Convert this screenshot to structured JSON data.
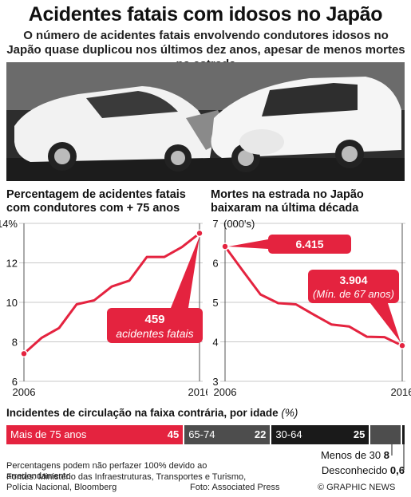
{
  "header": {
    "title": "Acidentes fatais com idosos no Japão",
    "subtitle": "O número de acidentes fatais envolvendo condutores idosos no Japão quase duplicou nos últimos dez anos, apesar de menos mortes na estrada"
  },
  "colors": {
    "accent": "#e4233f",
    "dark": "#1a1a1a",
    "mid": "#4d4d4d",
    "grid": "#c8c8c8",
    "panel": "#ffffff"
  },
  "chart_data": [
    {
      "type": "line",
      "title": "Percentagem de acidentes fatais com condutores com + 75 anos",
      "x": [
        2006,
        2007,
        2008,
        2009,
        2010,
        2011,
        2012,
        2013,
        2014,
        2015,
        2016
      ],
      "y": [
        7.4,
        8.2,
        8.7,
        9.9,
        10.1,
        10.8,
        11.1,
        12.3,
        12.3,
        12.8,
        13.5
      ],
      "ylim": [
        6,
        14
      ],
      "yticks": [
        "6",
        "8",
        "10",
        "12",
        "14%"
      ],
      "xticks": [
        "2006",
        "2016"
      ],
      "annotation": {
        "value": "459",
        "text": "acidentes fatais"
      }
    },
    {
      "type": "line",
      "title": "Mortes na estrada no Japão baixaram na última década",
      "ylabel_unit": "(000's)",
      "x": [
        2006,
        2007,
        2008,
        2009,
        2010,
        2011,
        2012,
        2013,
        2014,
        2015,
        2016
      ],
      "y": [
        6.415,
        5.8,
        5.2,
        4.98,
        4.95,
        4.69,
        4.44,
        4.39,
        4.13,
        4.12,
        3.904
      ],
      "ylim": [
        3,
        7
      ],
      "yticks": [
        "3",
        "4",
        "5",
        "6",
        "7"
      ],
      "xticks": [
        "2006",
        "2016"
      ],
      "annotations": [
        {
          "value": "6.415"
        },
        {
          "value": "3.904",
          "text": "(Mín. de 67 anos)"
        }
      ]
    },
    {
      "type": "bar",
      "title": "Incidentes de circulação na faixa contrária, por idade",
      "unit": "(%)",
      "categories": [
        "Mais de 75 anos",
        "65-74",
        "30-64",
        "Menos de 30",
        "Desconhecido"
      ],
      "values": [
        45,
        22,
        25,
        8,
        0.6
      ],
      "value_labels": [
        "45",
        "22",
        "25",
        "8",
        "0,6"
      ]
    }
  ],
  "footer": {
    "note": "Percentagens podem não perfazer 100% devido ao arredondamento",
    "sources_line1": "Fontes: Ministério das Infraestruturas, Transportes e Turismo,",
    "sources_line2": "Polícia Nacional, Bloomberg",
    "photo_credit": "Foto: Associated Press",
    "brand": "© GRAPHIC NEWS"
  }
}
